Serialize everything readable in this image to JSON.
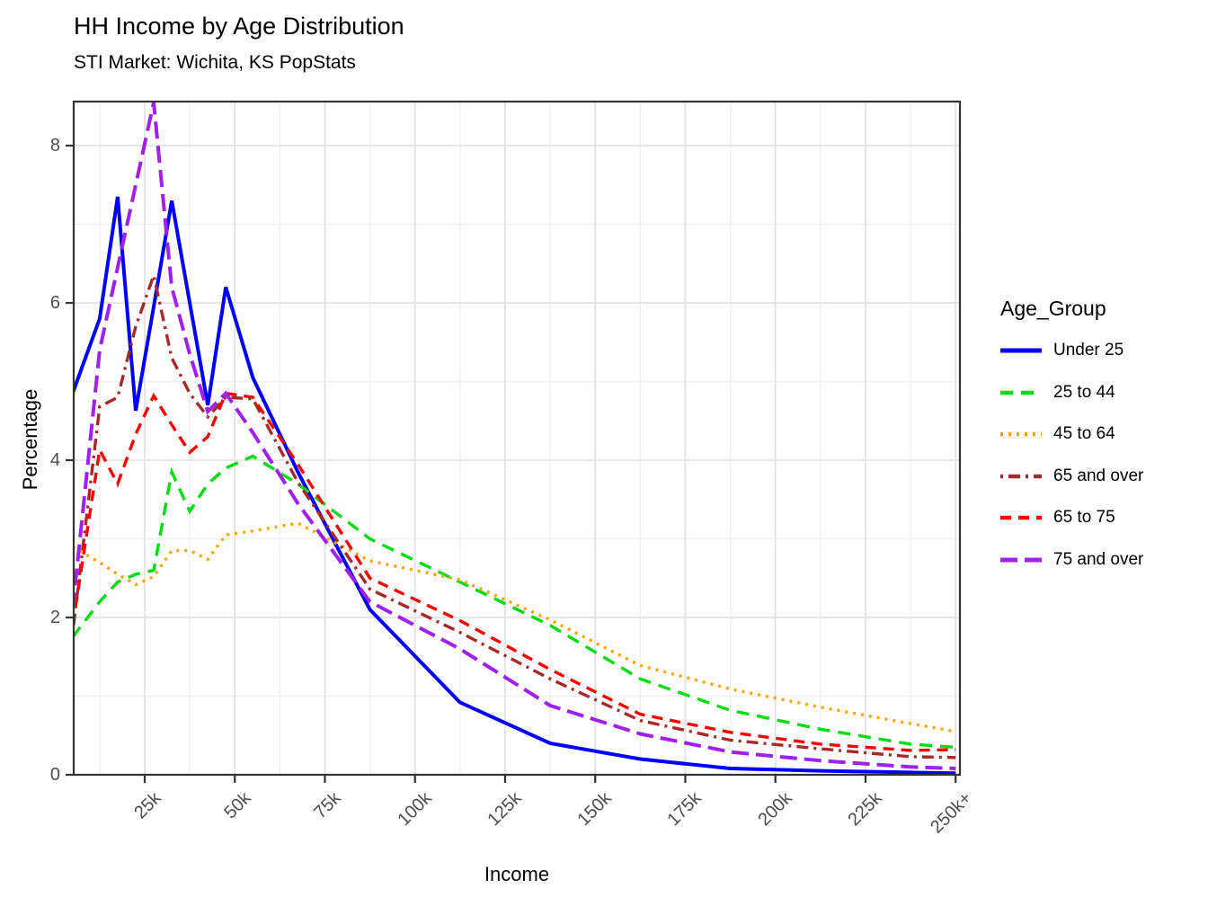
{
  "header": {
    "title": "HH Income by Age Distribution",
    "subtitle": "STI Market: Wichita, KS PopStats"
  },
  "axes": {
    "x": {
      "label": "Income"
    },
    "y": {
      "label": "Percentage"
    }
  },
  "legend": {
    "title": "Age_Group"
  },
  "chart_data": {
    "type": "line",
    "title": "HH Income by Age Distribution",
    "subtitle": "STI Market: Wichita, KS PopStats",
    "xlabel": "Income",
    "ylabel": "Percentage",
    "legend_title": "Age_Group",
    "legend_position": "right",
    "grid": true,
    "x_unit": "thousand dollars",
    "x": [
      5,
      12.5,
      17.5,
      22.5,
      27.5,
      32.5,
      37.5,
      42.5,
      47.5,
      55,
      67.5,
      87.5,
      112.5,
      137.5,
      162.5,
      187.5,
      212.5,
      237.5,
      250
    ],
    "x_axis": {
      "tick_values": [
        25,
        50,
        75,
        100,
        125,
        150,
        175,
        200,
        225,
        250
      ],
      "tick_labels": [
        "25k",
        "50k",
        "75k",
        "100k",
        "125k",
        "150k",
        "175k",
        "200k",
        "225k",
        "250k+"
      ],
      "minor_tick_values": [
        12.5,
        37.5,
        62.5,
        87.5,
        112.5,
        137.5,
        162.5,
        187.5,
        212.5,
        237.5
      ],
      "xlim": [
        5.3,
        251.2
      ]
    },
    "y_axis": {
      "tick_values": [
        0,
        2,
        4,
        6,
        8
      ],
      "tick_labels": [
        "0",
        "2",
        "4",
        "6",
        "8"
      ],
      "minor_tick_values": [
        1,
        3,
        5,
        7
      ],
      "ylim": [
        0,
        8.56
      ]
    },
    "series": [
      {
        "name": "Under 25",
        "color": "#0000FF",
        "linetype": "solid",
        "stroke_width": 4,
        "values": [
          4.85,
          5.8,
          7.35,
          4.63,
          5.95,
          7.3,
          6.0,
          4.7,
          6.2,
          5.05,
          3.85,
          2.1,
          0.92,
          0.4,
          0.2,
          0.08,
          0.05,
          0.03,
          0.02
        ]
      },
      {
        "name": "25 to 44",
        "color": "#00DD10",
        "linetype": "longdash",
        "stroke_width": 3.4,
        "values": [
          1.75,
          2.2,
          2.45,
          2.55,
          2.6,
          3.85,
          3.35,
          3.7,
          3.9,
          4.05,
          3.7,
          3.0,
          2.45,
          1.9,
          1.22,
          0.82,
          0.58,
          0.39,
          0.35
        ]
      },
      {
        "name": "45 to 64",
        "color": "#FFA500",
        "linetype": "dotted",
        "stroke_width": 3.4,
        "values": [
          2.9,
          2.7,
          2.55,
          2.42,
          2.52,
          2.85,
          2.85,
          2.74,
          3.05,
          3.1,
          3.2,
          2.72,
          2.48,
          1.97,
          1.39,
          1.09,
          0.86,
          0.65,
          0.55
        ]
      },
      {
        "name": "65 and over",
        "color": "#A52A2A",
        "linetype": "dotdash",
        "stroke_width": 3.4,
        "values": [
          1.8,
          4.68,
          4.8,
          5.7,
          6.35,
          5.3,
          4.85,
          4.55,
          4.8,
          4.78,
          3.72,
          2.36,
          1.81,
          1.22,
          0.69,
          0.44,
          0.33,
          0.23,
          0.22
        ]
      },
      {
        "name": "65 to 75",
        "color": "#FF0000",
        "linetype": "dashed",
        "stroke_width": 3.4,
        "values": [
          1.9,
          4.13,
          3.7,
          4.33,
          4.82,
          4.45,
          4.1,
          4.3,
          4.85,
          4.8,
          3.95,
          2.5,
          1.96,
          1.34,
          0.77,
          0.54,
          0.39,
          0.31,
          0.32
        ]
      },
      {
        "name": "75 and over",
        "color": "#A020F0",
        "linetype": "longdash-wide",
        "stroke_width": 4,
        "values": [
          2.1,
          5.4,
          6.45,
          7.5,
          8.55,
          6.2,
          5.35,
          4.62,
          4.85,
          4.35,
          3.45,
          2.2,
          1.6,
          0.88,
          0.52,
          0.29,
          0.18,
          0.1,
          0.08
        ]
      }
    ]
  },
  "style": {
    "grid_major_color": "#E3E3E3",
    "grid_minor_color": "#F1F1F1",
    "panel_border_color": "#333333",
    "tick_color": "#333333",
    "tick_label_color": "#4D4D4D"
  }
}
